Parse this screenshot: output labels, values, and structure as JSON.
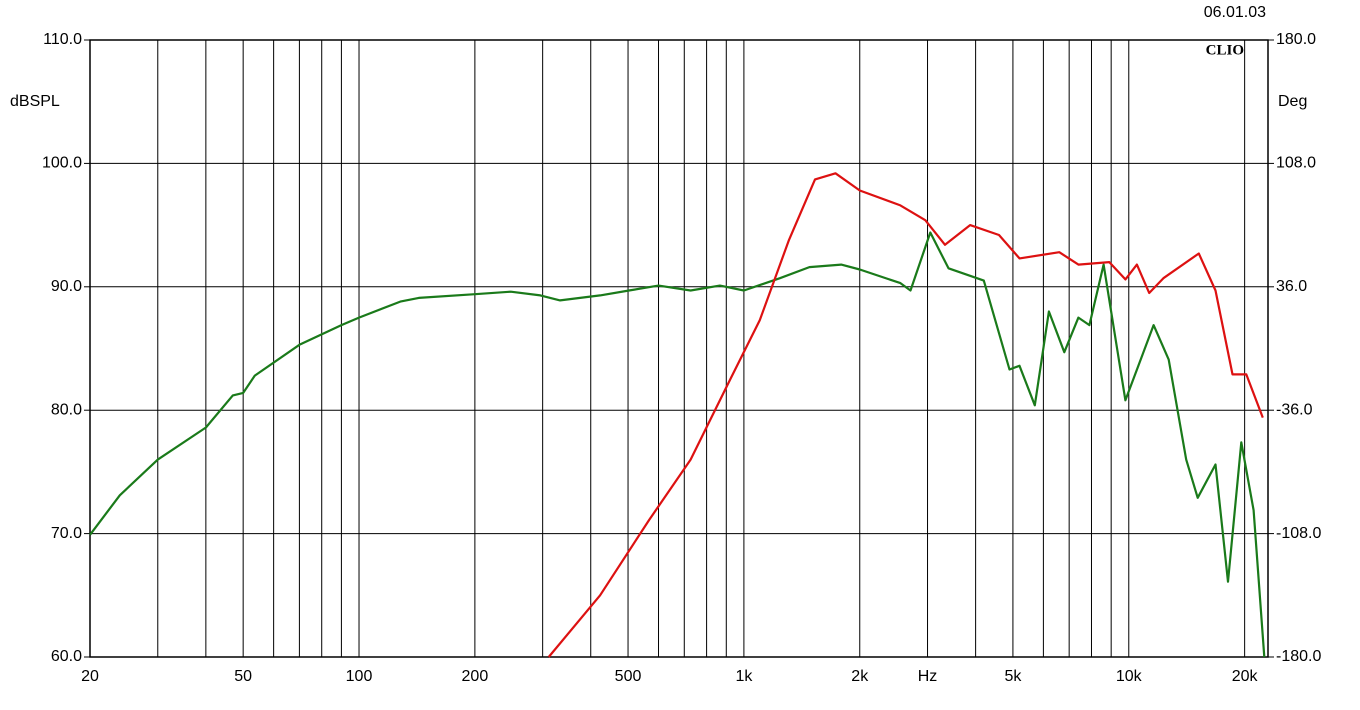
{
  "chart_data": {
    "type": "line",
    "date": "06.01.03",
    "brand": "CLIO",
    "ylabel": "dBSPL",
    "y2label": "Deg",
    "xscale": "log",
    "grid": true,
    "xlim": [
      20,
      23000
    ],
    "ylim": [
      60,
      110
    ],
    "y2lim": [
      -180,
      180
    ],
    "xticks": [
      20,
      50,
      100,
      200,
      500,
      {
        "value": 1000,
        "label": "1k"
      },
      {
        "value": 2000,
        "label": "2k"
      },
      {
        "value": 3000,
        "label": "Hz"
      },
      {
        "value": 5000,
        "label": "5k"
      },
      {
        "value": 10000,
        "label": "10k"
      },
      {
        "value": 20000,
        "label": "20k"
      }
    ],
    "xminor": [
      30,
      40,
      60,
      70,
      80,
      90,
      300,
      400,
      600,
      700,
      800,
      900,
      4000,
      6000,
      7000,
      8000,
      9000
    ],
    "yticks": [
      {
        "value": 60,
        "label": "60.0"
      },
      {
        "value": 70,
        "label": "70.0"
      },
      {
        "value": 80,
        "label": "80.0"
      },
      {
        "value": 90,
        "label": "90.0"
      },
      {
        "value": 100,
        "label": "100.0"
      },
      {
        "value": 110,
        "label": "110.0"
      }
    ],
    "y2ticks": [
      {
        "value": -180,
        "label": "-180.0"
      },
      {
        "value": -108,
        "label": "-108.0"
      },
      {
        "value": -36,
        "label": "-36.0"
      },
      {
        "value": 36,
        "label": "36.0"
      },
      {
        "value": 108,
        "label": "108.0"
      },
      {
        "value": 180,
        "label": "180.0"
      }
    ],
    "series": [
      {
        "color": "#1a7a1a",
        "x": [
          20,
          23.9,
          30,
          40,
          47,
          50,
          53.6,
          70,
          90,
          100,
          128,
          143,
          200,
          248,
          296,
          333,
          423,
          503,
          600,
          727,
          866,
          1000,
          1240,
          1480,
          1790,
          2000,
          2550,
          2710,
          3050,
          3400,
          4200,
          4900,
          5200,
          5700,
          6200,
          6800,
          7400,
          7900,
          8600,
          9800,
          11600,
          12700,
          14100,
          15100,
          16800,
          18100,
          19600,
          21100,
          22500
        ],
        "values": [
          69.9,
          73.1,
          76.0,
          78.6,
          81.2,
          81.4,
          82.8,
          85.3,
          86.9,
          87.5,
          88.8,
          89.1,
          89.4,
          89.6,
          89.3,
          88.9,
          89.3,
          89.7,
          90.1,
          89.7,
          90.1,
          89.7,
          90.7,
          91.6,
          91.8,
          91.4,
          90.3,
          89.7,
          94.4,
          91.5,
          90.5,
          83.3,
          83.6,
          80.4,
          88.0,
          84.7,
          87.5,
          86.9,
          91.8,
          80.8,
          86.9,
          84.1,
          76.0,
          72.9,
          75.6,
          66.1,
          77.4,
          71.9,
          60.0
        ]
      },
      {
        "color": "#dd1111",
        "x": [
          311,
          423,
          567,
          727,
          918,
          1100,
          1310,
          1530,
          1730,
          2000,
          2550,
          2960,
          3330,
          3870,
          4600,
          5200,
          6600,
          7400,
          8900,
          9800,
          10500,
          11300,
          12300,
          15200,
          16800,
          18600,
          20200,
          22300
        ],
        "values": [
          60.0,
          65.0,
          71.1,
          76.0,
          82.4,
          87.3,
          93.8,
          98.7,
          99.2,
          97.8,
          96.6,
          95.4,
          93.4,
          95.0,
          94.2,
          92.3,
          92.8,
          91.8,
          92.0,
          90.6,
          91.8,
          89.5,
          90.7,
          92.7,
          89.7,
          82.9,
          82.9,
          79.4
        ]
      }
    ]
  }
}
